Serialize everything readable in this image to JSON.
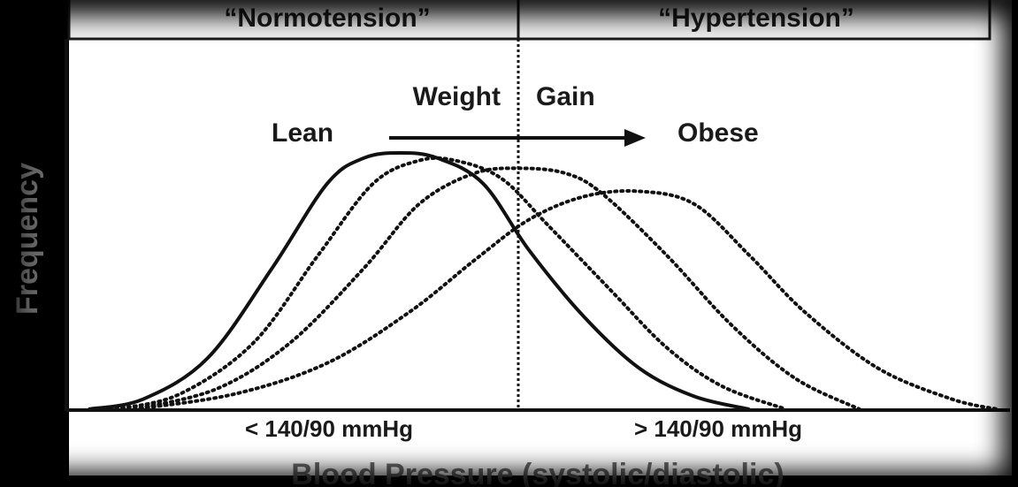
{
  "header": {
    "left_label": "“Normotension”",
    "right_label": "“Hypertension”"
  },
  "annotation": {
    "weight": "Weight",
    "gain": "Gain",
    "lean": "Lean",
    "obese": "Obese"
  },
  "axes": {
    "ylabel": "Frequency",
    "xlabel": "Blood Pressure (systolic/diastolic)",
    "left_range": "< 140/90 mmHg",
    "right_range": "> 140/90 mmHg"
  },
  "chart_data": {
    "type": "line",
    "x_threshold": "140/90 mmHg",
    "series": [
      {
        "style": "solid",
        "points": [
          [
            0.0,
            0.0
          ],
          [
            0.06,
            0.04
          ],
          [
            0.13,
            0.2
          ],
          [
            0.2,
            0.55
          ],
          [
            0.26,
            0.88
          ],
          [
            0.3,
            0.98
          ],
          [
            0.34,
            1.0
          ],
          [
            0.38,
            0.98
          ],
          [
            0.43,
            0.88
          ],
          [
            0.48,
            0.62
          ],
          [
            0.54,
            0.36
          ],
          [
            0.6,
            0.16
          ],
          [
            0.66,
            0.05
          ],
          [
            0.72,
            0.0
          ]
        ]
      },
      {
        "style": "dotted",
        "points": [
          [
            0.03,
            0.0
          ],
          [
            0.1,
            0.06
          ],
          [
            0.18,
            0.26
          ],
          [
            0.25,
            0.6
          ],
          [
            0.31,
            0.88
          ],
          [
            0.36,
            0.97
          ],
          [
            0.4,
            0.97
          ],
          [
            0.45,
            0.9
          ],
          [
            0.5,
            0.72
          ],
          [
            0.57,
            0.46
          ],
          [
            0.63,
            0.24
          ],
          [
            0.69,
            0.09
          ],
          [
            0.76,
            0.0
          ]
        ]
      },
      {
        "style": "dotted",
        "points": [
          [
            0.05,
            0.0
          ],
          [
            0.14,
            0.08
          ],
          [
            0.22,
            0.26
          ],
          [
            0.3,
            0.55
          ],
          [
            0.36,
            0.8
          ],
          [
            0.42,
            0.92
          ],
          [
            0.47,
            0.94
          ],
          [
            0.52,
            0.92
          ],
          [
            0.56,
            0.84
          ],
          [
            0.63,
            0.6
          ],
          [
            0.7,
            0.33
          ],
          [
            0.77,
            0.12
          ],
          [
            0.84,
            0.0
          ]
        ]
      },
      {
        "style": "dotted",
        "points": [
          [
            0.05,
            0.0
          ],
          [
            0.16,
            0.06
          ],
          [
            0.26,
            0.18
          ],
          [
            0.35,
            0.38
          ],
          [
            0.42,
            0.58
          ],
          [
            0.48,
            0.74
          ],
          [
            0.54,
            0.83
          ],
          [
            0.6,
            0.85
          ],
          [
            0.66,
            0.8
          ],
          [
            0.72,
            0.6
          ],
          [
            0.78,
            0.38
          ],
          [
            0.86,
            0.16
          ],
          [
            0.94,
            0.04
          ],
          [
            0.99,
            0.0
          ]
        ]
      }
    ]
  },
  "colors": {
    "background": "#000000",
    "panel": "#ffffff",
    "ink": "#1a1a1a"
  }
}
